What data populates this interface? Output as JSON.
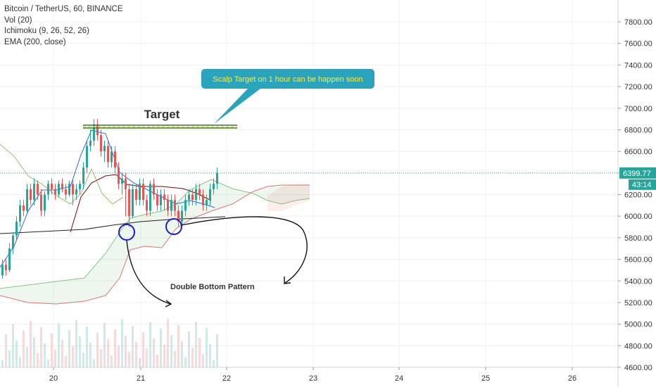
{
  "legend": {
    "symbol": "Bitcoin / TetherUS, 60, BINANCE",
    "vol": "Vol (20)",
    "ichimoku": "Ichimoku (9, 26, 52, 26)",
    "ema": "EMA (200, close)"
  },
  "price_scale": {
    "ticks": [
      "7800.00",
      "7600.00",
      "7400.00",
      "7200.00",
      "7000.00",
      "6800.00",
      "6600.00",
      "6400.00",
      "6200.00",
      "6000.00",
      "5800.00",
      "5600.00",
      "5400.00",
      "5200.00",
      "5000.00",
      "4800.00",
      "4600.00"
    ],
    "current_price": "6399.77",
    "countdown": "43:14"
  },
  "time_scale": {
    "ticks": [
      "20",
      "21",
      "22",
      "23",
      "24",
      "25",
      "26"
    ]
  },
  "annotations": {
    "target_label": "Target",
    "callout": "Scalp Target on 1 hour can be happen soon",
    "pattern_label": "Double Bottom Pattern"
  },
  "colors": {
    "bull": "#26a69a",
    "bear": "#ef5350",
    "price_line": "#26a69a",
    "callout_bg": "#2aa4bd",
    "callout_text": "#ffeb3b",
    "circle": "#1a1ad6",
    "target_line": "#2e7d32",
    "target_dash": "#ffd600"
  },
  "chart_data": {
    "type": "candlestick",
    "x_axis": [
      "20",
      "21",
      "22",
      "23",
      "24",
      "25",
      "26"
    ],
    "y_range": [
      4600,
      7900
    ],
    "current_price": 6399.77,
    "target_level": 6830,
    "double_bottom_lows": [
      5880,
      5920
    ],
    "candles": [
      [
        5450,
        5550,
        5420,
        5600
      ],
      [
        5550,
        5500,
        5450,
        5600
      ],
      [
        5500,
        5700,
        5480,
        5750
      ],
      [
        5700,
        5820,
        5650,
        5850
      ],
      [
        5820,
        5950,
        5780,
        6000
      ],
      [
        5950,
        6100,
        5900,
        6150
      ],
      [
        6100,
        6050,
        6000,
        6150
      ],
      [
        6050,
        6250,
        6020,
        6300
      ],
      [
        6250,
        6150,
        6100,
        6300
      ],
      [
        6150,
        6300,
        6100,
        6350
      ],
      [
        6300,
        6200,
        6150,
        6330
      ],
      [
        6200,
        6050,
        6000,
        6250
      ],
      [
        6050,
        6200,
        6000,
        6230
      ],
      [
        6200,
        6300,
        6150,
        6330
      ],
      [
        6300,
        6250,
        6200,
        6350
      ],
      [
        6250,
        6200,
        6150,
        6300
      ],
      [
        6200,
        6300,
        6180,
        6330
      ],
      [
        6300,
        6250,
        6220,
        6350
      ],
      [
        6250,
        6200,
        6150,
        6300
      ],
      [
        6200,
        6300,
        6180,
        6330
      ],
      [
        6300,
        6200,
        6100,
        6350
      ],
      [
        6200,
        6250,
        6150,
        6300
      ],
      [
        6250,
        6300,
        6200,
        6330
      ],
      [
        6300,
        6450,
        6250,
        6500
      ],
      [
        6450,
        6650,
        6400,
        6700
      ],
      [
        6650,
        6700,
        6600,
        6800
      ],
      [
        6700,
        6850,
        6650,
        6900
      ],
      [
        6850,
        6750,
        6700,
        6900
      ],
      [
        6750,
        6600,
        6550,
        6800
      ],
      [
        6600,
        6650,
        6500,
        6700
      ],
      [
        6650,
        6500,
        6450,
        6700
      ],
      [
        6500,
        6600,
        6450,
        6650
      ],
      [
        6600,
        6450,
        6400,
        6650
      ],
      [
        6450,
        6300,
        6250,
        6500
      ],
      [
        6300,
        6350,
        6200,
        6400
      ],
      [
        6350,
        6250,
        6000,
        6400
      ],
      [
        6250,
        6000,
        5900,
        6300
      ],
      [
        6000,
        6250,
        5980,
        6300
      ],
      [
        6250,
        6150,
        6100,
        6300
      ],
      [
        6150,
        6300,
        6100,
        6350
      ],
      [
        6300,
        6150,
        6100,
        6350
      ],
      [
        6150,
        6050,
        6000,
        6200
      ],
      [
        6050,
        6300,
        6000,
        6330
      ],
      [
        6300,
        6200,
        6150,
        6350
      ],
      [
        6200,
        6100,
        6050,
        6250
      ],
      [
        6100,
        6200,
        6050,
        6250
      ],
      [
        6200,
        6150,
        6050,
        6250
      ],
      [
        6150,
        6050,
        6000,
        6200
      ],
      [
        6050,
        6150,
        6000,
        6200
      ],
      [
        6150,
        6050,
        6000,
        6200
      ],
      [
        6050,
        5950,
        5900,
        6100
      ],
      [
        5950,
        6050,
        5920,
        6100
      ],
      [
        6050,
        6150,
        6000,
        6200
      ],
      [
        6150,
        6200,
        6100,
        6250
      ],
      [
        6200,
        6150,
        6100,
        6250
      ],
      [
        6150,
        6250,
        6100,
        6300
      ],
      [
        6250,
        6200,
        6150,
        6300
      ],
      [
        6200,
        6100,
        6050,
        6250
      ],
      [
        6100,
        6150,
        6050,
        6200
      ],
      [
        6150,
        6250,
        6100,
        6300
      ],
      [
        6250,
        6300,
        6200,
        6350
      ],
      [
        6300,
        6400,
        6250,
        6450
      ]
    ]
  }
}
